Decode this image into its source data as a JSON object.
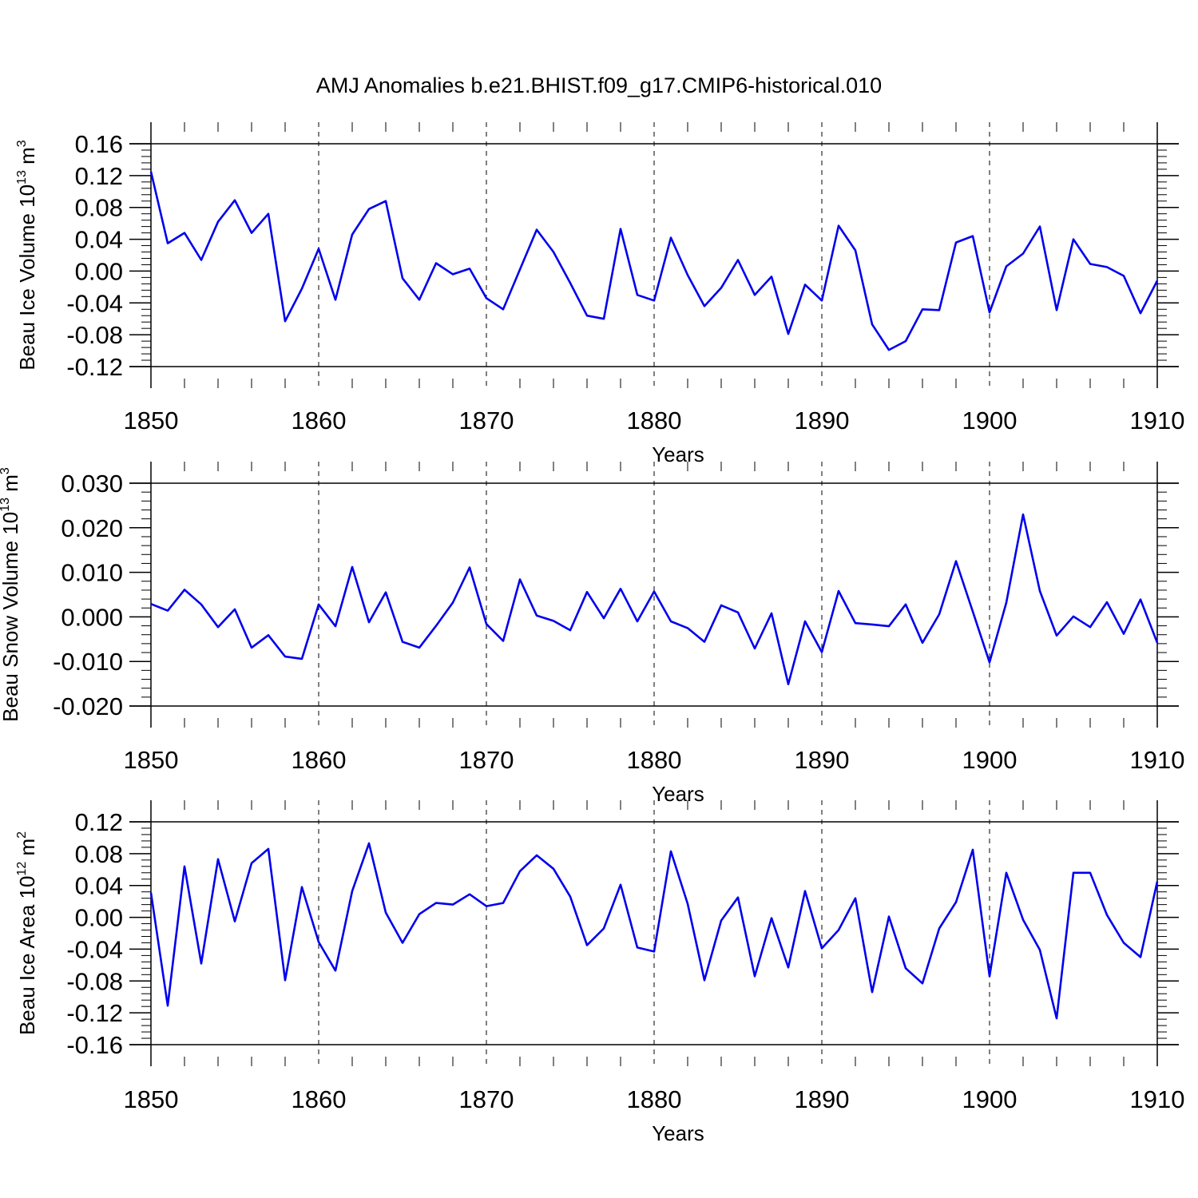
{
  "title": "AMJ Anomalies b.e21.BHIST.f09_g17.CMIP6-historical.010",
  "line_color": "#0000ee",
  "chart_data": [
    {
      "type": "line",
      "ylabel": {
        "main": "Beau Ice Volume 10",
        "exp": "13",
        "unit": " m",
        "unit_exp": "3"
      },
      "xlabel": "Years",
      "xlim": [
        1850,
        1910
      ],
      "ylim": [
        -0.12,
        0.16
      ],
      "yticks": [
        "-0.12",
        "-0.08",
        "-0.04",
        "0.00",
        "0.04",
        "0.08",
        "0.12",
        "0.16"
      ],
      "xticks": [
        "1850",
        "1860",
        "1870",
        "1880",
        "1890",
        "1900",
        "1910"
      ],
      "x_start": 1850,
      "values": [
        0.125,
        0.035,
        0.048,
        0.014,
        0.062,
        0.089,
        0.048,
        0.072,
        -0.063,
        -0.022,
        0.028,
        -0.036,
        0.046,
        0.078,
        0.088,
        -0.009,
        -0.036,
        0.01,
        -0.004,
        0.003,
        -0.034,
        -0.048,
        0.002,
        0.052,
        0.024,
        -0.015,
        -0.056,
        -0.06,
        0.053,
        -0.03,
        -0.037,
        0.042,
        -0.005,
        -0.044,
        -0.021,
        0.014,
        -0.03,
        -0.007,
        -0.079,
        -0.017,
        -0.037,
        0.057,
        0.026,
        -0.067,
        -0.099,
        -0.088,
        -0.048,
        -0.049,
        0.036,
        0.044,
        -0.052,
        0.006,
        0.022,
        0.056,
        -0.049,
        0.04,
        0.009,
        0.005,
        -0.006,
        -0.053,
        -0.012
      ]
    },
    {
      "type": "line",
      "ylabel": {
        "main": "Beau Snow Volume 10",
        "exp": "13",
        "unit": " m",
        "unit_exp": "3"
      },
      "xlabel": "Years",
      "xlim": [
        1850,
        1910
      ],
      "ylim": [
        -0.02,
        0.03
      ],
      "yticks": [
        "-0.020",
        "-0.010",
        "0.000",
        "0.010",
        "0.020",
        "0.030"
      ],
      "xticks": [
        "1850",
        "1860",
        "1870",
        "1880",
        "1890",
        "1900",
        "1910"
      ],
      "x_start": 1850,
      "values": [
        0.0029,
        0.0014,
        0.0061,
        0.0028,
        -0.0023,
        0.0017,
        -0.0069,
        -0.0041,
        -0.0089,
        -0.0094,
        0.0028,
        -0.0021,
        0.0112,
        -0.0012,
        0.0055,
        -0.0056,
        -0.0069,
        -0.002,
        0.0032,
        0.0111,
        -0.0016,
        -0.0054,
        0.0084,
        0.0003,
        -0.0009,
        -0.003,
        0.0056,
        -0.0003,
        0.0063,
        -0.001,
        0.0057,
        -0.001,
        -0.0025,
        -0.0056,
        0.0026,
        0.001,
        -0.0071,
        0.0008,
        -0.0151,
        -0.001,
        -0.0079,
        0.0058,
        -0.0014,
        -0.0017,
        -0.0021,
        0.0028,
        -0.0058,
        0.0006,
        0.0125,
        0.0012,
        -0.0102,
        0.0032,
        0.023,
        0.0058,
        -0.0042,
        0.0001,
        -0.0023,
        0.0033,
        -0.0038,
        0.0039,
        -0.0058
      ]
    },
    {
      "type": "line",
      "ylabel": {
        "main": "Beau Ice Area 10",
        "exp": "12",
        "unit": " m",
        "unit_exp": "2"
      },
      "xlabel": "Years",
      "xlim": [
        1850,
        1910
      ],
      "ylim": [
        -0.16,
        0.12
      ],
      "yticks": [
        "-0.16",
        "-0.12",
        "-0.08",
        "-0.04",
        "0.00",
        "0.04",
        "0.08",
        "0.12"
      ],
      "xticks": [
        "1850",
        "1860",
        "1870",
        "1880",
        "1890",
        "1900",
        "1910"
      ],
      "x_start": 1850,
      "values": [
        0.031,
        -0.111,
        0.064,
        -0.058,
        0.073,
        -0.005,
        0.068,
        0.086,
        -0.079,
        0.038,
        -0.031,
        -0.067,
        0.033,
        0.093,
        0.006,
        -0.032,
        0.004,
        0.018,
        0.016,
        0.029,
        0.014,
        0.018,
        0.058,
        0.078,
        0.061,
        0.026,
        -0.035,
        -0.014,
        0.041,
        -0.038,
        -0.043,
        0.083,
        0.017,
        -0.079,
        -0.004,
        0.025,
        -0.074,
        -0.001,
        -0.063,
        0.033,
        -0.039,
        -0.016,
        0.024,
        -0.094,
        0.001,
        -0.064,
        -0.083,
        -0.014,
        0.019,
        0.085,
        -0.074,
        0.056,
        -0.003,
        -0.041,
        -0.127,
        0.056,
        0.056,
        0.003,
        -0.032,
        -0.05,
        0.045
      ]
    }
  ]
}
